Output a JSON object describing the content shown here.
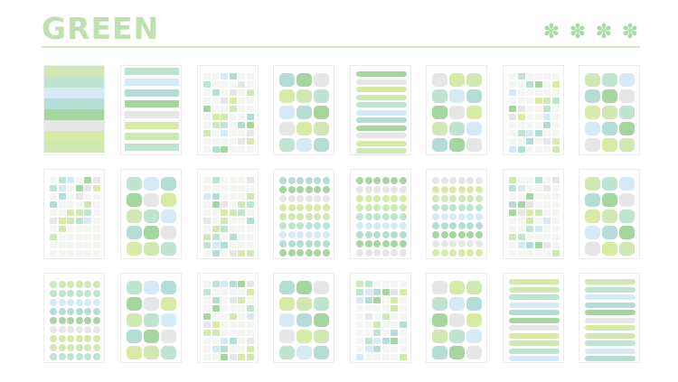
{
  "header": {
    "title": "GREEN",
    "decoration_icon": "flower-icon",
    "decoration_count": 4
  },
  "colors": {
    "title": "#bfe1b2",
    "light_green": "#cfe8b4",
    "mint": "#bfe4cf",
    "sky": "#d6eaf6",
    "teal": "#b4ddd6",
    "green": "#a6d6a0",
    "grey": "#e6e6e6",
    "lime": "#d7eaa6"
  },
  "sheets": {
    "rows": 3,
    "columns": 8,
    "count": 24
  }
}
